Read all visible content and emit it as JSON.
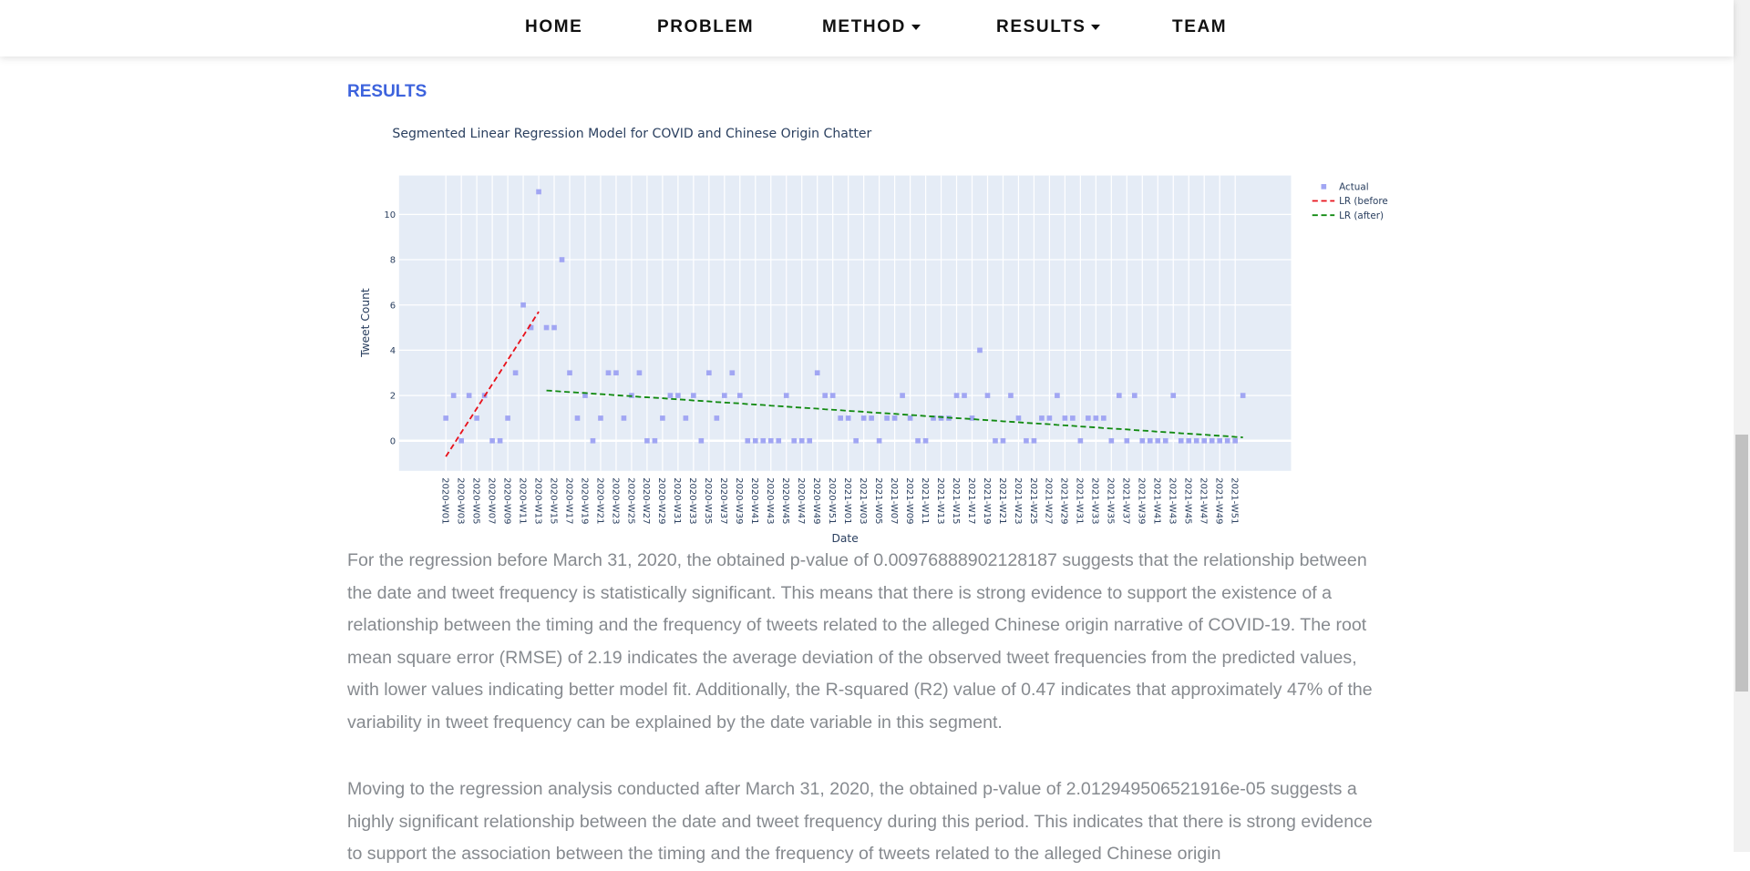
{
  "nav": {
    "items": [
      "HOME",
      "PROBLEM",
      "METHOD",
      "RESULTS",
      "TEAM"
    ]
  },
  "section": {
    "heading": "RESULTS"
  },
  "chart_data": {
    "type": "scatter",
    "title": "Segmented Linear Regression Model for COVID and Chinese Origin Chatter",
    "x_label": "Date",
    "y_label": "Tweet Count",
    "categories": [
      "2020-W01",
      null,
      "2020-W03",
      null,
      "2020-W05",
      null,
      "2020-W07",
      null,
      "2020-W09",
      null,
      "2020-W11",
      null,
      "2020-W13",
      null,
      "2020-W15",
      null,
      "2020-W17",
      null,
      "2020-W19",
      null,
      "2020-W21",
      null,
      "2020-W23",
      null,
      "2020-W25",
      null,
      "2020-W27",
      null,
      "2020-W29",
      null,
      "2020-W31",
      null,
      "2020-W33",
      null,
      "2020-W35",
      null,
      "2020-W37",
      null,
      "2020-W39",
      null,
      "2020-W41",
      null,
      "2020-W43",
      null,
      "2020-W45",
      null,
      "2020-W47",
      null,
      "2020-W49",
      null,
      "2020-W51",
      null,
      "2021-W01",
      null,
      "2021-W03",
      null,
      "2021-W05",
      null,
      "2021-W07",
      null,
      "2021-W09",
      null,
      "2021-W11",
      null,
      "2021-W13",
      null,
      "2021-W15",
      null,
      "2021-W17",
      null,
      "2021-W19",
      null,
      "2021-W21",
      null,
      "2021-W23",
      null,
      "2021-W25",
      null,
      "2021-W27",
      null,
      "2021-W29",
      null,
      "2021-W31",
      null,
      "2021-W33",
      null,
      "2021-W35",
      null,
      "2021-W37",
      null,
      "2021-W39",
      null,
      "2021-W41",
      null,
      "2021-W43",
      null,
      "2021-W45",
      null,
      "2021-W47",
      null,
      "2021-W49",
      null,
      "2021-W51",
      null
    ],
    "series": [
      {
        "name": "Actual",
        "mode": "markers",
        "color": "#a1a6f3",
        "values": [
          1,
          2,
          0,
          2,
          1,
          2,
          0,
          0,
          1,
          3,
          6,
          5,
          11,
          5,
          5,
          8,
          3,
          1,
          2,
          0,
          1,
          3,
          3,
          1,
          2,
          3,
          0,
          0,
          1,
          2,
          2,
          1,
          2,
          0,
          3,
          1,
          2,
          3,
          2,
          0,
          0,
          0,
          0,
          0,
          2,
          0,
          0,
          0,
          3,
          2,
          2,
          1,
          1,
          0,
          1,
          1,
          0,
          1,
          1,
          2,
          1,
          0,
          0,
          1,
          1,
          1,
          2,
          2,
          1,
          4,
          2,
          0,
          0,
          2,
          1,
          0,
          0,
          1,
          1,
          2,
          1,
          1,
          0,
          1,
          1,
          1,
          0,
          2,
          0,
          2,
          0,
          0,
          0,
          0,
          2,
          0,
          0,
          0,
          0,
          0,
          0,
          0,
          0,
          2
        ]
      },
      {
        "name": "LR (before",
        "mode": "lines",
        "dash": true,
        "color": "#e8121b",
        "values": [
          -0.7,
          -0.17,
          0.37,
          0.9,
          1.43,
          1.97,
          2.5,
          3.03,
          3.57,
          4.1,
          4.63,
          5.17,
          5.7,
          null,
          null,
          null,
          null,
          null,
          null,
          null,
          null,
          null,
          null,
          null,
          null,
          null,
          null,
          null,
          null,
          null,
          null,
          null,
          null,
          null,
          null,
          null,
          null,
          null,
          null,
          null,
          null,
          null,
          null,
          null,
          null,
          null,
          null,
          null,
          null,
          null,
          null,
          null,
          null,
          null,
          null,
          null,
          null,
          null,
          null,
          null,
          null,
          null,
          null,
          null,
          null,
          null,
          null,
          null,
          null,
          null,
          null,
          null,
          null,
          null,
          null,
          null,
          null,
          null,
          null,
          null,
          null,
          null,
          null,
          null,
          null,
          null,
          null,
          null,
          null,
          null,
          null,
          null,
          null,
          null,
          null,
          null,
          null,
          null,
          null,
          null,
          null,
          null,
          null,
          null
        ]
      },
      {
        "name": "LR (after)",
        "mode": "lines",
        "dash": true,
        "color": "#118a11",
        "values": [
          null,
          null,
          null,
          null,
          null,
          null,
          null,
          null,
          null,
          null,
          null,
          null,
          null,
          2.22,
          2.2,
          2.17,
          2.15,
          2.13,
          2.11,
          2.08,
          2.06,
          2.04,
          2.01,
          1.99,
          1.97,
          1.94,
          1.92,
          1.9,
          1.88,
          1.85,
          1.83,
          1.81,
          1.78,
          1.76,
          1.74,
          1.71,
          1.69,
          1.67,
          1.65,
          1.62,
          1.6,
          1.58,
          1.55,
          1.53,
          1.51,
          1.48,
          1.46,
          1.44,
          1.42,
          1.39,
          1.37,
          1.35,
          1.32,
          1.3,
          1.28,
          1.25,
          1.23,
          1.21,
          1.19,
          1.16,
          1.14,
          1.12,
          1.09,
          1.07,
          1.05,
          1.02,
          1.0,
          0.98,
          0.96,
          0.93,
          0.91,
          0.89,
          0.86,
          0.84,
          0.82,
          0.79,
          0.77,
          0.75,
          0.73,
          0.7,
          0.68,
          0.66,
          0.63,
          0.61,
          0.59,
          0.56,
          0.54,
          0.52,
          0.5,
          0.47,
          0.45,
          0.43,
          0.4,
          0.38,
          0.36,
          0.33,
          0.31,
          0.29,
          0.27,
          0.24,
          0.22,
          0.2,
          0.17,
          0.15
        ]
      }
    ],
    "ylim": [
      -1.33,
      11.72
    ],
    "yticks": [
      0,
      2,
      4,
      6,
      8,
      10
    ],
    "grid": true,
    "legend": "right",
    "plot_background": "#e5ecf6"
  },
  "paragraphs": [
    "For the regression before March 31, 2020, the obtained p-value of 0.00976888902128187 suggests that the relationship between the date and tweet frequency is statistically significant. This means that there is strong evidence to support the existence of a relationship between the timing and the frequency of tweets related to the alleged Chinese origin narrative of COVID-19. The root mean square error (RMSE) of 2.19 indicates the average deviation of the observed tweet frequencies from the predicted values, with lower values indicating better model fit. Additionally, the R-squared (R2) value of 0.47 indicates that approximately 47% of the variability in tweet frequency can be explained by the date variable in this segment.",
    "Moving to the regression analysis conducted after March 31, 2020, the obtained p-value of 2.012949506521916e-05 suggests a highly significant relationship between the date and tweet frequency during this period. This indicates that there is strong evidence to support the association between the timing and the frequency of tweets related to the alleged Chinese origin"
  ]
}
